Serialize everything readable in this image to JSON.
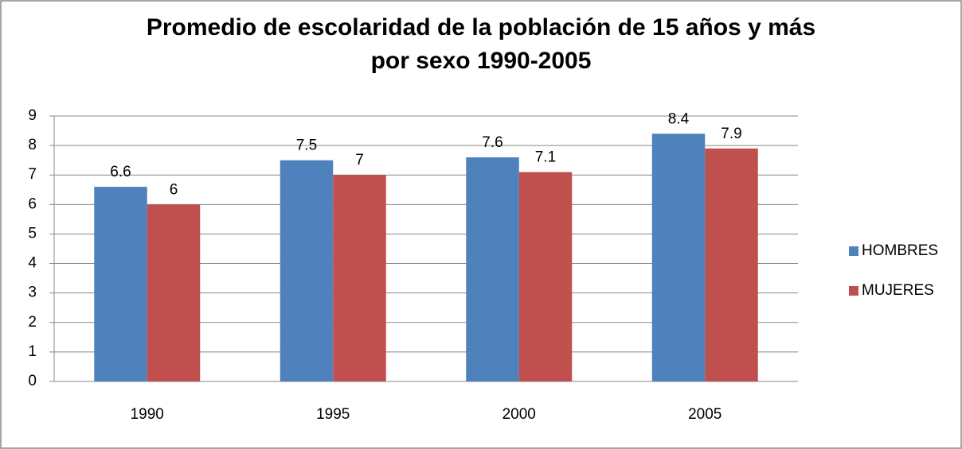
{
  "chart_data": {
    "type": "bar",
    "title": [
      "Promedio de escolaridad de la población de 15 años y más",
      "por sexo 1990-2005"
    ],
    "categories": [
      "1990",
      "1995",
      "2000",
      "2005"
    ],
    "series": [
      {
        "name": "HOMBRES",
        "color": "#4f81bd",
        "values": [
          6.6,
          7.5,
          7.6,
          8.4
        ]
      },
      {
        "name": "MUJERES",
        "color": "#c0504d",
        "values": [
          6,
          7,
          7.1,
          7.9
        ]
      }
    ],
    "ylim": [
      0,
      9
    ],
    "yticks": [
      0,
      1,
      2,
      3,
      4,
      5,
      6,
      7,
      8,
      9
    ],
    "grid": true,
    "legend": "right"
  }
}
